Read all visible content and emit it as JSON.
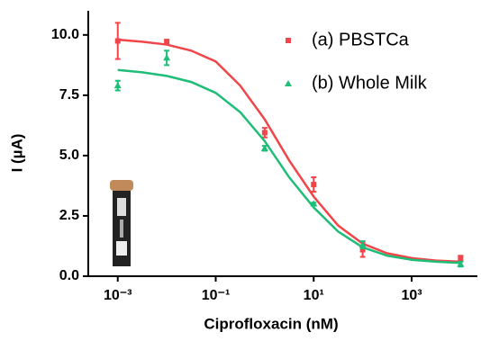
{
  "chart_data": {
    "type": "scatter",
    "x_label": "Ciprofloxacin (nM)",
    "y_label": "I (µA)",
    "log_x": true,
    "xlim": [
      0.00025,
      22000
    ],
    "ylim": [
      0,
      11
    ],
    "xticks": [
      {
        "value": 0.001,
        "label": "10⁻³"
      },
      {
        "value": 0.1,
        "label": "10⁻¹"
      },
      {
        "value": 10,
        "label": "10¹"
      },
      {
        "value": 1000,
        "label": "10³"
      }
    ],
    "yticks": [
      {
        "value": 0,
        "label": "0.0"
      },
      2.5,
      {
        "value": 5,
        "label": "5.0"
      },
      7.5,
      {
        "value": 10,
        "label": "10.0"
      }
    ],
    "legend": "upper right",
    "x": [
      0.001,
      0.01,
      1,
      10,
      100,
      10000
    ],
    "series": [
      {
        "name": "(a) PBSTCa",
        "color": "#f0464a",
        "marker": "square",
        "values": [
          9.75,
          9.7,
          5.95,
          3.8,
          1.1,
          0.75
        ],
        "errors": [
          0.75,
          0.1,
          0.2,
          0.3,
          0.3,
          0.1
        ],
        "fit": {
          "x": [
            0.001,
            0.00316,
            0.01,
            0.0316,
            0.1,
            0.316,
            1,
            3.16,
            10,
            31.6,
            100,
            316,
            1000,
            3162,
            10000
          ],
          "values": [
            9.8,
            9.72,
            9.6,
            9.35,
            8.9,
            7.9,
            6.5,
            4.8,
            3.3,
            2.1,
            1.35,
            0.95,
            0.75,
            0.65,
            0.6
          ]
        }
      },
      {
        "name": "(b) Whole Milk",
        "color": "#1ebd78",
        "marker": "triangle",
        "values": [
          7.9,
          9.05,
          5.3,
          3.0,
          1.3,
          0.5
        ],
        "errors": [
          0.2,
          0.3,
          0.1,
          0.05,
          0.15,
          0.1
        ],
        "fit": {
          "x": [
            0.001,
            0.00316,
            0.01,
            0.0316,
            0.1,
            0.316,
            1,
            3.16,
            10,
            31.6,
            100,
            316,
            1000,
            3162,
            10000
          ],
          "values": [
            8.55,
            8.45,
            8.3,
            8.05,
            7.6,
            6.8,
            5.6,
            4.1,
            2.85,
            1.85,
            1.2,
            0.85,
            0.68,
            0.6,
            0.55
          ]
        }
      }
    ]
  }
}
